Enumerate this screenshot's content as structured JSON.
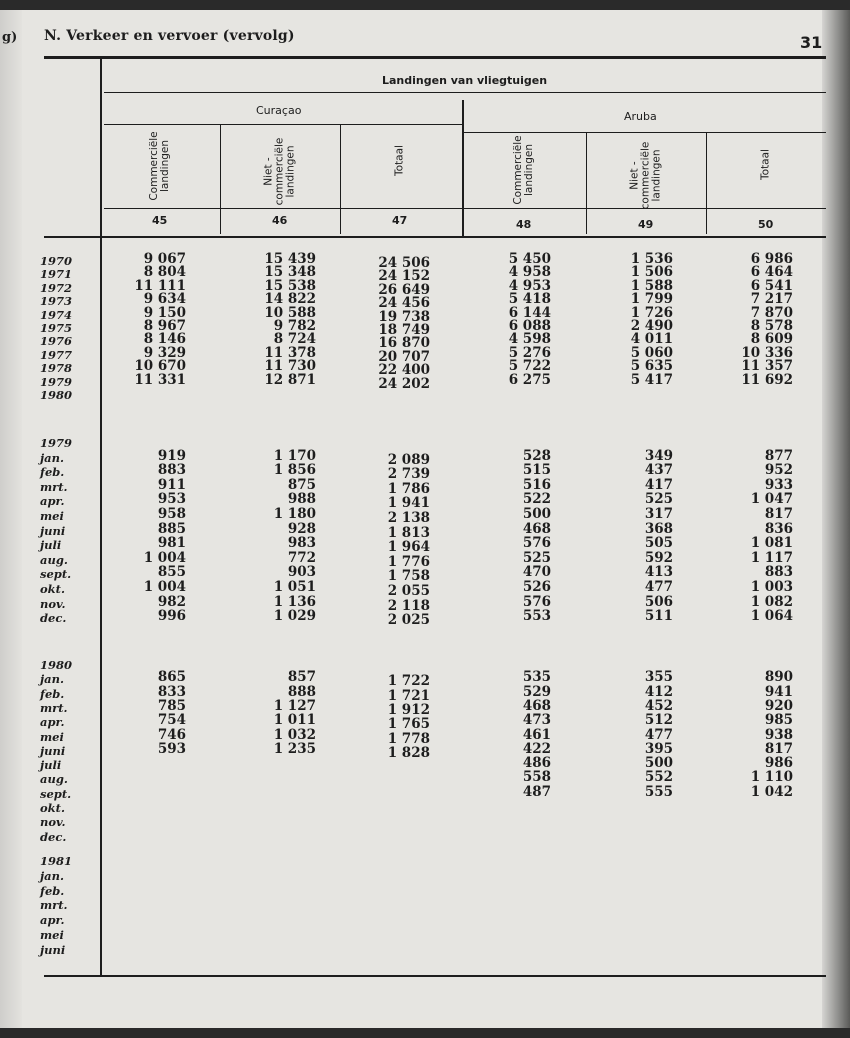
{
  "left_page_fragment": "g)",
  "header": {
    "title": "N.  Verkeer en vervoer (vervolg)",
    "page_number": "31"
  },
  "table": {
    "group_title": "Landingen van vliegtuigen",
    "regions": [
      "Curaçao",
      "Aruba"
    ],
    "columns": [
      {
        "label": "Commerciële\nlandingen",
        "number": "45"
      },
      {
        "label": "Niet -\ncommerciële\nlandingen",
        "number": "46"
      },
      {
        "label": "Totaal",
        "number": "47"
      },
      {
        "label": "Commerciële\nlandingen",
        "number": "48"
      },
      {
        "label": "Niet -\ncommerciële\nlandingen",
        "number": "49"
      },
      {
        "label": "Totaal",
        "number": "50"
      }
    ],
    "sections": [
      {
        "rows": [
          {
            "label": "1970",
            "values": [
              "9 067",
              "15 439",
              "24 506",
              "5 450",
              "1 536",
              "6 986"
            ]
          },
          {
            "label": "1971",
            "values": [
              "8 804",
              "15 348",
              "24 152",
              "4 958",
              "1 506",
              "6 464"
            ]
          },
          {
            "label": "1972",
            "values": [
              "11 111",
              "15 538",
              "26 649",
              "4 953",
              "1 588",
              "6 541"
            ]
          },
          {
            "label": "1973",
            "values": [
              "9 634",
              "14 822",
              "24 456",
              "5 418",
              "1 799",
              "7 217"
            ]
          },
          {
            "label": "1974",
            "values": [
              "9 150",
              "10 588",
              "19 738",
              "6 144",
              "1 726",
              "7 870"
            ]
          },
          {
            "label": "1975",
            "values": [
              "8 967",
              "9 782",
              "18 749",
              "6 088",
              "2 490",
              "8 578"
            ]
          },
          {
            "label": "1976",
            "values": [
              "8 146",
              "8 724",
              "16 870",
              "4 598",
              "4 011",
              "8 609"
            ]
          },
          {
            "label": "1977",
            "values": [
              "9 329",
              "11 378",
              "20 707",
              "5 276",
              "5 060",
              "10 336"
            ]
          },
          {
            "label": "1978",
            "values": [
              "10 670",
              "11 730",
              "22 400",
              "5 722",
              "5 635",
              "11 357"
            ]
          },
          {
            "label": "1979",
            "values": [
              "11 331",
              "12 871",
              "24 202",
              "6 275",
              "5 417",
              "11 692"
            ]
          },
          {
            "label": "1980",
            "values": [
              "",
              "",
              "",
              "",
              "",
              ""
            ]
          }
        ]
      },
      {
        "year": "1979",
        "rows": [
          {
            "label": "jan.",
            "values": [
              "919",
              "1 170",
              "2 089",
              "528",
              "349",
              "877"
            ]
          },
          {
            "label": "feb.",
            "values": [
              "883",
              "1 856",
              "2 739",
              "515",
              "437",
              "952"
            ]
          },
          {
            "label": "mrt.",
            "values": [
              "911",
              "875",
              "1 786",
              "516",
              "417",
              "933"
            ]
          },
          {
            "label": "apr.",
            "values": [
              "953",
              "988",
              "1 941",
              "522",
              "525",
              "1 047"
            ]
          },
          {
            "label": "mei",
            "values": [
              "958",
              "1 180",
              "2 138",
              "500",
              "317",
              "817"
            ]
          },
          {
            "label": "juni",
            "values": [
              "885",
              "928",
              "1 813",
              "468",
              "368",
              "836"
            ]
          },
          {
            "label": "juli",
            "values": [
              "981",
              "983",
              "1 964",
              "576",
              "505",
              "1 081"
            ]
          },
          {
            "label": "aug.",
            "values": [
              "1 004",
              "772",
              "1 776",
              "525",
              "592",
              "1 117"
            ]
          },
          {
            "label": "sept.",
            "values": [
              "855",
              "903",
              "1 758",
              "470",
              "413",
              "883"
            ]
          },
          {
            "label": "okt.",
            "values": [
              "1 004",
              "1 051",
              "2 055",
              "526",
              "477",
              "1 003"
            ]
          },
          {
            "label": "nov.",
            "values": [
              "982",
              "1 136",
              "2 118",
              "576",
              "506",
              "1 082"
            ]
          },
          {
            "label": "dec.",
            "values": [
              "996",
              "1 029",
              "2 025",
              "553",
              "511",
              "1 064"
            ]
          }
        ]
      },
      {
        "year": "1980",
        "rows": [
          {
            "label": "jan.",
            "values": [
              "865",
              "857",
              "1 722",
              "535",
              "355",
              "890"
            ]
          },
          {
            "label": "feb.",
            "values": [
              "833",
              "888",
              "1 721",
              "529",
              "412",
              "941"
            ]
          },
          {
            "label": "mrt.",
            "values": [
              "785",
              "1 127",
              "1 912",
              "468",
              "452",
              "920"
            ]
          },
          {
            "label": "apr.",
            "values": [
              "754",
              "1 011",
              "1 765",
              "473",
              "512",
              "985"
            ]
          },
          {
            "label": "mei",
            "values": [
              "746",
              "1 032",
              "1 778",
              "461",
              "477",
              "938"
            ]
          },
          {
            "label": "juni",
            "values": [
              "593",
              "1 235",
              "1 828",
              "422",
              "395",
              "817"
            ]
          },
          {
            "label": "juli",
            "values": [
              "",
              "",
              "",
              "486",
              "500",
              "986"
            ]
          },
          {
            "label": "aug.",
            "values": [
              "",
              "",
              "",
              "558",
              "552",
              "1 110"
            ]
          },
          {
            "label": "sept.",
            "values": [
              "",
              "",
              "",
              "487",
              "555",
              "1 042"
            ]
          },
          {
            "label": "okt.",
            "values": [
              "",
              "",
              "",
              "",
              "",
              ""
            ]
          },
          {
            "label": "nov.",
            "values": [
              "",
              "",
              "",
              "",
              "",
              ""
            ]
          },
          {
            "label": "dec.",
            "values": [
              "",
              "",
              "",
              "",
              "",
              ""
            ]
          }
        ]
      },
      {
        "year": "1981",
        "rows": [
          {
            "label": "jan.",
            "values": [
              "",
              "",
              "",
              "",
              "",
              ""
            ]
          },
          {
            "label": "feb.",
            "values": [
              "",
              "",
              "",
              "",
              "",
              ""
            ]
          },
          {
            "label": "mrt.",
            "values": [
              "",
              "",
              "",
              "",
              "",
              ""
            ]
          },
          {
            "label": "apr.",
            "values": [
              "",
              "",
              "",
              "",
              "",
              ""
            ]
          },
          {
            "label": "mei",
            "values": [
              "",
              "",
              "",
              "",
              "",
              ""
            ]
          },
          {
            "label": "juni",
            "values": [
              "",
              "",
              "",
              "",
              "",
              ""
            ]
          }
        ]
      }
    ]
  }
}
